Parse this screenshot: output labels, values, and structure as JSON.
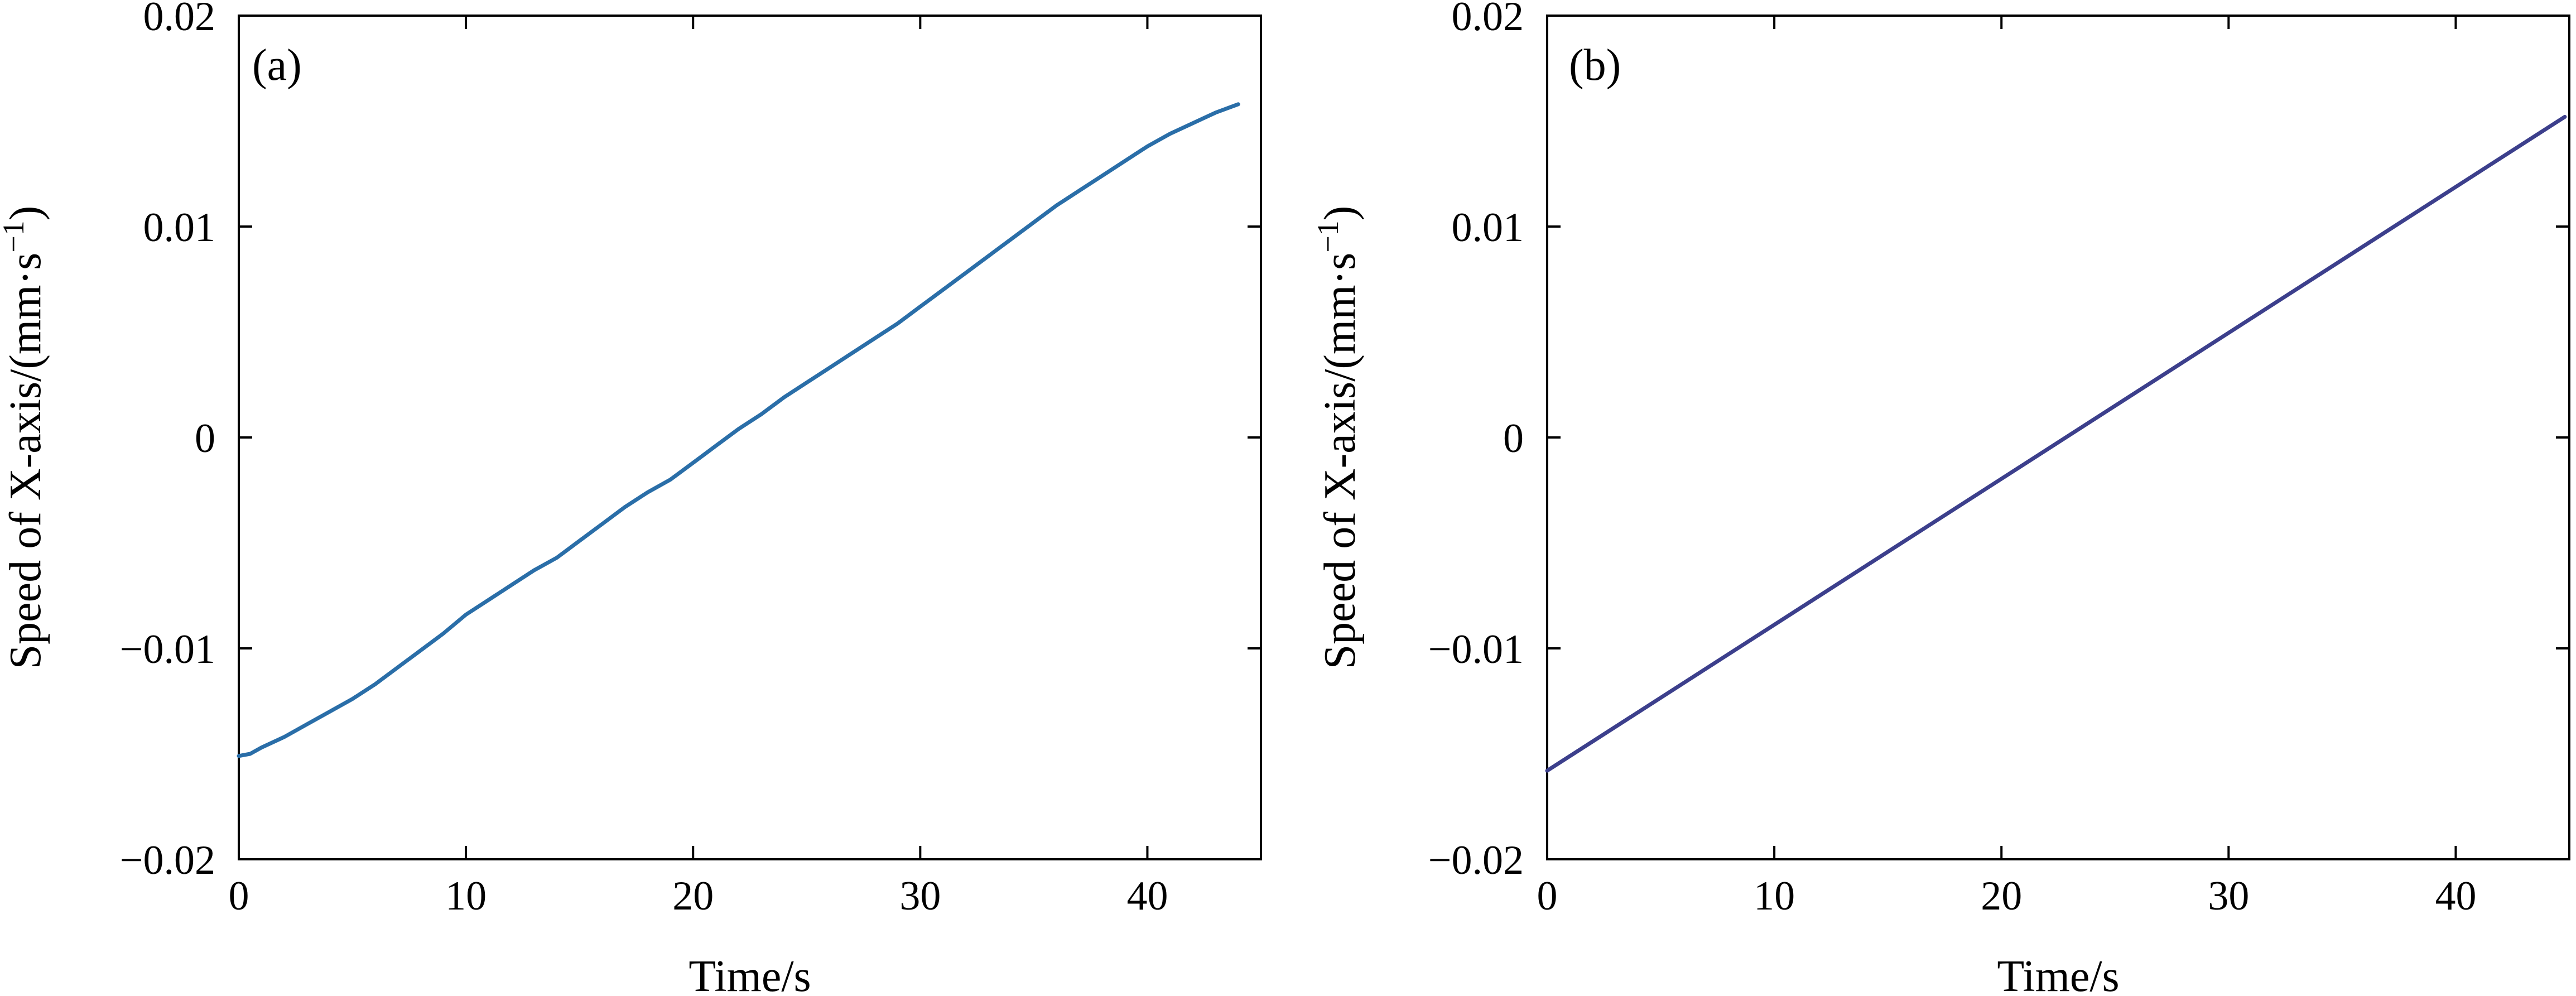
{
  "chart_data": [
    {
      "type": "line",
      "panel_label": "(a)",
      "xlabel": "Time/s",
      "ylabel_main": "Speed of X-axis/(mm·s",
      "ylabel_sup": "−1",
      "ylabel_close": ")",
      "xlim": [
        0,
        45
      ],
      "ylim": [
        -0.02,
        0.02
      ],
      "xticks": [
        0,
        10,
        20,
        30,
        40
      ],
      "xtick_labels": [
        "0",
        "10",
        "20",
        "30",
        "40"
      ],
      "yticks": [
        -0.02,
        -0.01,
        0,
        0.01,
        0.02
      ],
      "ytick_labels": [
        "−0.02",
        "−0.01",
        "0",
        "0.01",
        "0.02"
      ],
      "grid": false,
      "series": [
        {
          "color": "#2a6ea8",
          "x": [
            0,
            0.5,
            1,
            2,
            3,
            4,
            5,
            6,
            7,
            8,
            9,
            10,
            11,
            12,
            13,
            14,
            15,
            16,
            17,
            18,
            19,
            20,
            21,
            22,
            23,
            24,
            25,
            26,
            27,
            28,
            29,
            30,
            31,
            32,
            33,
            34,
            35,
            36,
            37,
            38,
            39,
            40,
            41,
            42,
            43,
            44
          ],
          "y": [
            -0.0151,
            -0.015,
            -0.0147,
            -0.0142,
            -0.0136,
            -0.013,
            -0.0124,
            -0.0117,
            -0.0109,
            -0.0101,
            -0.0093,
            -0.0084,
            -0.0077,
            -0.007,
            -0.0063,
            -0.0057,
            -0.0049,
            -0.0041,
            -0.0033,
            -0.0026,
            -0.002,
            -0.0012,
            -0.0004,
            0.0004,
            0.0011,
            0.0019,
            0.0026,
            0.0033,
            0.004,
            0.0047,
            0.0054,
            0.0062,
            0.007,
            0.0078,
            0.0086,
            0.0094,
            0.0102,
            0.011,
            0.0117,
            0.0124,
            0.0131,
            0.0138,
            0.0144,
            0.0149,
            0.0154,
            0.0158
          ]
        }
      ]
    },
    {
      "type": "line",
      "panel_label": "(b)",
      "xlabel": "Time/s",
      "ylabel_main": "Speed of X-axis/(mm·s",
      "ylabel_sup": "−1",
      "ylabel_close": ")",
      "xlim": [
        0,
        45
      ],
      "ylim": [
        -0.02,
        0.02
      ],
      "xticks": [
        0,
        10,
        20,
        30,
        40
      ],
      "xtick_labels": [
        "0",
        "10",
        "20",
        "30",
        "40"
      ],
      "yticks": [
        -0.02,
        -0.01,
        0,
        0.01,
        0.02
      ],
      "ytick_labels": [
        "−0.02",
        "−0.01",
        "0",
        "0.01",
        "0.02"
      ],
      "grid": false,
      "series": [
        {
          "color": "#3c3f8c",
          "x": [
            0,
            44.8
          ],
          "y": [
            -0.0158,
            0.0152
          ]
        }
      ]
    }
  ]
}
